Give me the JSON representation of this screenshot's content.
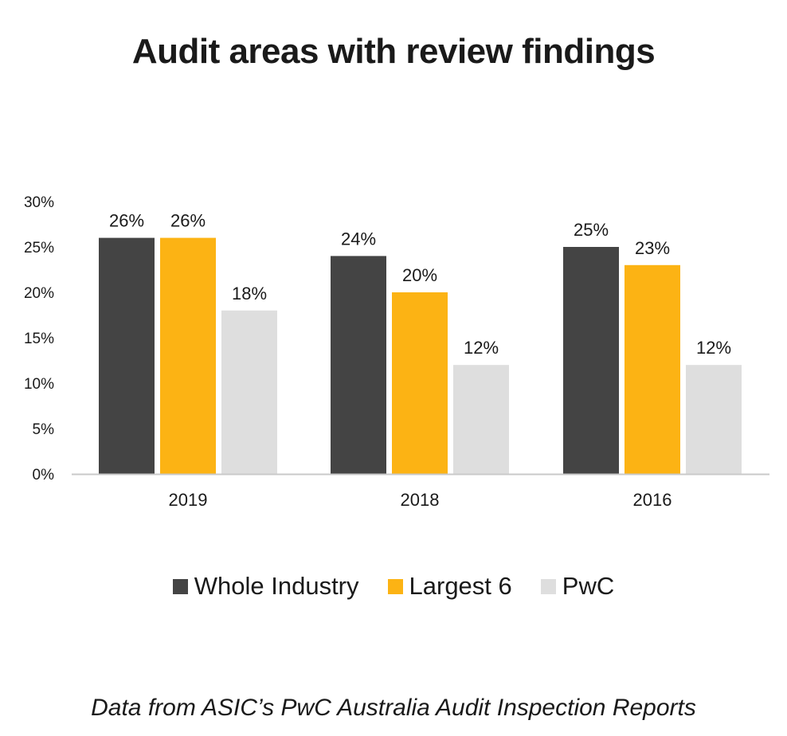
{
  "chart_data": {
    "type": "bar",
    "title": "Audit areas with review findings",
    "categories": [
      "2019",
      "2018",
      "2016"
    ],
    "series": [
      {
        "name": "Whole Industry",
        "values": [
          26,
          24,
          25
        ],
        "color": "#444444"
      },
      {
        "name": "Largest 6",
        "values": [
          26,
          20,
          23
        ],
        "color": "#FCB314"
      },
      {
        "name": "PwC",
        "values": [
          18,
          12,
          12
        ],
        "color": "#DEDEDE"
      }
    ],
    "data_labels": [
      [
        "26%",
        "24%",
        "25%"
      ],
      [
        "26%",
        "20%",
        "23%"
      ],
      [
        "18%",
        "12%",
        "12%"
      ]
    ],
    "yticks": [
      "0%",
      "5%",
      "10%",
      "15%",
      "20%",
      "25%",
      "30%"
    ],
    "ylim": [
      0,
      30
    ],
    "xlabel": "",
    "ylabel": "",
    "grid": false,
    "legend_position": "bottom",
    "caption": "Data from ASIC’s PwC Australia Audit Inspection Reports"
  }
}
